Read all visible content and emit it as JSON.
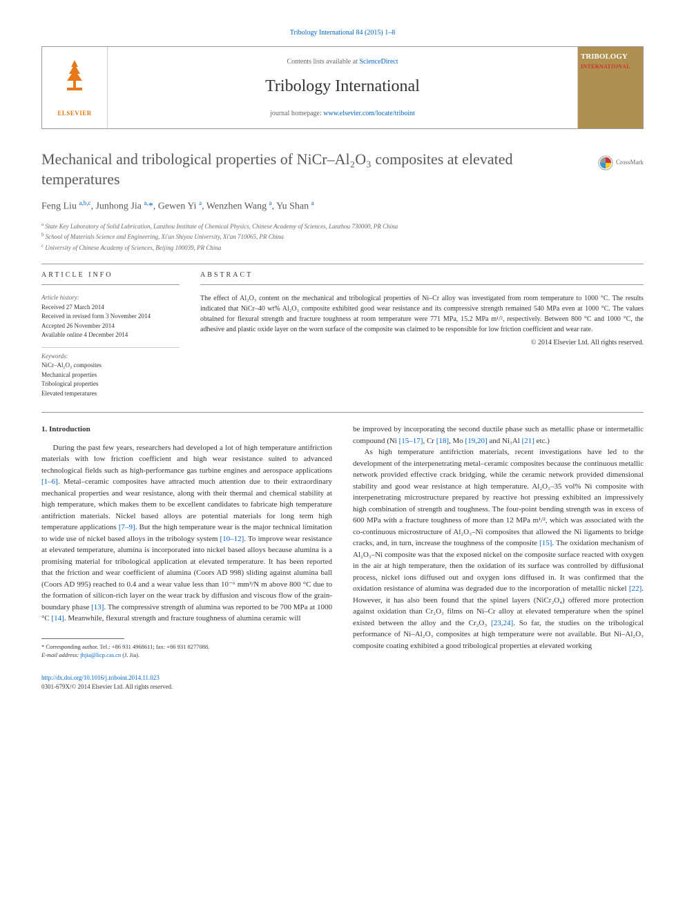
{
  "top_link": "Tribology International 84 (2015) 1–8",
  "header": {
    "contents_prefix": "Contents lists available at ",
    "contents_link": "ScienceDirect",
    "journal": "Tribology International",
    "homepage_prefix": "journal homepage: ",
    "homepage_url": "www.elsevier.com/locate/triboint",
    "elsevier_label": "ELSEVIER",
    "trib_line1": "TRIBOLOGY",
    "trib_line2": "INTERNATIONAL"
  },
  "crossmark_label": "CrossMark",
  "title": "Mechanical and tribological properties of NiCr–Al₂O₃ composites at elevated temperatures",
  "authors_html": "Feng Liu <sup>a,b,c</sup>, Junhong Jia <sup>a,</sup><span class='ast'>*</span>, Gewen Yi <sup>a</sup>, Wenzhen Wang <sup>a</sup>, Yu Shan <sup>a</sup>",
  "affiliations": [
    "a State Key Laboratory of Solid Lubrication, Lanzhou Institute of Chemical Physics, Chinese Academy of Sciences, Lanzhou 730000, PR China",
    "b School of Materials Science and Engineering, Xi'an Shiyou University, Xi'an 710065, PR China",
    "c University of Chinese Academy of Sciences, Beijing 100039, PR China"
  ],
  "article_info": {
    "head": "ARTICLE INFO",
    "history_label": "Article history:",
    "history": [
      "Received 27 March 2014",
      "Received in revised form 3 November 2014",
      "Accepted 26 November 2014",
      "Available online 4 December 2014"
    ],
    "keywords_label": "Keywords:",
    "keywords": [
      "NiCr–Al₂O₃ composites",
      "Mechanical properties",
      "Tribological properties",
      "Elevated temperatures"
    ]
  },
  "abstract": {
    "head": "ABSTRACT",
    "text": "The effect of Al₂O₃ content on the mechanical and tribological properties of Ni–Cr alloy was investigated from room temperature to 1000 °C. The results indicated that NiCr–40 wt% Al₂O₃ composite exhibited good wear resistance and its compressive strength remained 540 MPa even at 1000 °C. The values obtained for flexural strength and fracture toughness at room temperature were 771 MPa, 15.2 MPa m¹/², respectively. Between 800 °C and 1000 °C, the adhesive and plastic oxide layer on the worn surface of the composite was claimed to be responsible for low friction coefficient and wear rate.",
    "copyright": "© 2014 Elsevier Ltd. All rights reserved."
  },
  "section1_head": "1.  Introduction",
  "col1_para": "During the past few years, researchers had developed a lot of high temperature antifriction materials with low friction coefficient and high wear resistance suited to advanced technological fields such as high-performance gas turbine engines and aerospace applications <span class='cite'>[1–6]</span>. Metal–ceramic composites have attracted much attention due to their extraordinary mechanical properties and wear resistance, along with their thermal and chemical stability at high temperature, which makes them to be excellent candidates to fabricate high temperature antifriction materials. Nickel based alloys are potential materials for long term high temperature applications <span class='cite'>[7–9]</span>. But the high temperature wear is the major technical limitation to wide use of nickel based alloys in the tribology system <span class='cite'>[10–12]</span>. To improve wear resistance at elevated temperature, alumina is incorporated into nickel based alloys because alumina is a promising material for tribological application at elevated temperature. It has been reported that the friction and wear coefficient of alumina (Coors AD 998) sliding against alumina ball (Coors AD 995) reached to 0.4 and a wear value less than 10⁻⁶ mm³/N m above 800 °C due to the formation of silicon-rich layer on the wear track by diffusion and viscous flow of the grain-boundary phase <span class='cite'>[13]</span>. The compressive strength of alumina was reported to be 700 MPa at 1000 °C <span class='cite'>[14]</span>. Meanwhile, flexural strength and fracture toughness of alumina ceramic will",
  "col2_para1": "be improved by incorporating the second ductile phase such as metallic phase or intermetallic compound (Ni <span class='cite'>[15–17]</span>, Cr <span class='cite'>[18]</span>, Mo <span class='cite'>[19,20]</span> and Ni₃Al <span class='cite'>[21]</span> etc.)",
  "col2_para2": "As high temperature antifriction materials, recent investigations have led to the development of the interpenetrating metal–ceramic composites because the continuous metallic network provided effective crack bridging, while the ceramic network provided dimensional stability and good wear resistance at high temperature. Al₂O₃–35 vol% Ni composite with interpenetrating microstructure prepared by reactive hot pressing exhibited an impressively high combination of strength and toughness. The four-point bending strength was in excess of 600 MPa with a fracture toughness of more than 12 MPa m¹/², which was associated with the co-continuous microstructure of Al₂O₃–Ni composites that allowed the Ni ligaments to bridge cracks, and, in turn, increase the toughness of the composite <span class='cite'>[15]</span>. The oxidation mechanism of Al₂O₃–Ni composite was that the exposed nickel on the composite surface reacted with oxygen in the air at high temperature, then the oxidation of its surface was controlled by diffusional process, nickel ions diffused out and oxygen ions diffused in. It was confirmed that the oxidation resistance of alumina was degraded due to the incorporation of metallic nickel <span class='cite'>[22]</span>. However, it has also been found that the spinel layers (NiCr₂O₄) offered more protection against oxidation than Cr₂O₃ films on Ni–Cr alloy at elevated temperature when the spinel existed between the alloy and the Cr₂O₃ <span class='cite'>[23,24]</span>. So far, the studies on the tribological performance of Ni–Al₂O₃ composites at high temperature were not available. But Ni–Al₂O₃ composite coating exhibited a good tribological properties at elevated working",
  "footnote": {
    "corr": "* Corresponding author. Tel.: +86 931 4968611; fax: +86 931 8277088.",
    "email_label": "E-mail address: ",
    "email": "jhjia@licp.cas.cn",
    "email_suffix": " (J. Jia)."
  },
  "bottom": {
    "doi": "http://dx.doi.org/10.1016/j.triboint.2014.11.023",
    "issn": "0301-679X/© 2014 Elsevier Ltd. All rights reserved."
  },
  "colors": {
    "link": "#0066cc",
    "elsevier_orange": "#e67817",
    "trib_bg": "#b09050",
    "trib_red": "#cc3333",
    "text_gray": "#595959"
  }
}
